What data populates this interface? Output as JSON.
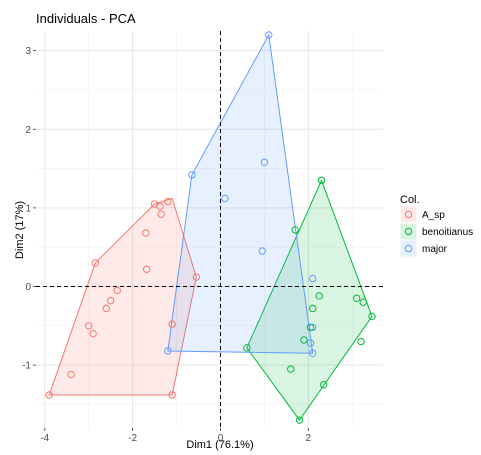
{
  "chart_data": {
    "type": "scatter",
    "title": "Individuals - PCA",
    "xlabel": "Dim1 (76.1%)",
    "ylabel": "Dim2 (17%)",
    "xlim": [
      -4.2,
      3.7
    ],
    "ylim": [
      -1.8,
      3.25
    ],
    "xticks": [
      -4,
      -2,
      0,
      2
    ],
    "yticks": [
      -1,
      0,
      1,
      2,
      3
    ],
    "grid": true,
    "reference_lines": {
      "x": 0,
      "y": 0,
      "style": "dashed"
    },
    "legend": {
      "title": "Col.",
      "position": "right"
    },
    "series": [
      {
        "name": "A_sp",
        "color": "#F8766D",
        "points": [
          [
            -3.9,
            -1.38
          ],
          [
            -3.4,
            -1.12
          ],
          [
            -3.0,
            -0.5
          ],
          [
            -2.9,
            -0.6
          ],
          [
            -2.85,
            0.3
          ],
          [
            -2.6,
            -0.28
          ],
          [
            -2.5,
            -0.18
          ],
          [
            -2.35,
            -0.05
          ],
          [
            -1.7,
            0.68
          ],
          [
            -1.68,
            0.22
          ],
          [
            -1.5,
            1.05
          ],
          [
            -1.38,
            1.02
          ],
          [
            -1.35,
            0.92
          ],
          [
            -1.2,
            1.08
          ],
          [
            -1.1,
            -0.48
          ],
          [
            -1.1,
            -1.38
          ],
          [
            -0.55,
            0.12
          ]
        ],
        "hull": [
          [
            -3.9,
            -1.38
          ],
          [
            -1.1,
            -1.38
          ],
          [
            -0.55,
            0.12
          ],
          [
            -1.1,
            1.12
          ],
          [
            -1.5,
            1.05
          ],
          [
            -2.85,
            0.3
          ]
        ]
      },
      {
        "name": "benoitianus",
        "color": "#00BA38",
        "points": [
          [
            0.6,
            -0.78
          ],
          [
            1.6,
            -1.05
          ],
          [
            1.7,
            0.72
          ],
          [
            1.8,
            -1.7
          ],
          [
            1.9,
            -0.68
          ],
          [
            2.05,
            -0.52
          ],
          [
            2.1,
            -0.28
          ],
          [
            2.25,
            -0.12
          ],
          [
            2.3,
            1.35
          ],
          [
            2.35,
            -1.25
          ],
          [
            3.1,
            -0.15
          ],
          [
            3.2,
            -0.7
          ],
          [
            3.25,
            -0.2
          ],
          [
            3.45,
            -0.38
          ]
        ],
        "hull": [
          [
            0.6,
            -0.78
          ],
          [
            1.8,
            -1.7
          ],
          [
            3.45,
            -0.38
          ],
          [
            2.3,
            1.35
          ]
        ]
      },
      {
        "name": "major",
        "color": "#619CFF",
        "points": [
          [
            -1.2,
            -0.82
          ],
          [
            -0.65,
            1.42
          ],
          [
            0.1,
            1.12
          ],
          [
            0.95,
            0.45
          ],
          [
            1.0,
            1.58
          ],
          [
            1.1,
            3.2
          ],
          [
            2.05,
            -0.72
          ],
          [
            2.1,
            -0.85
          ],
          [
            2.1,
            0.1
          ],
          [
            2.1,
            -0.52
          ]
        ],
        "hull": [
          [
            1.1,
            3.2
          ],
          [
            2.1,
            -0.85
          ],
          [
            -1.2,
            -0.82
          ],
          [
            -0.65,
            1.42
          ]
        ]
      }
    ]
  }
}
